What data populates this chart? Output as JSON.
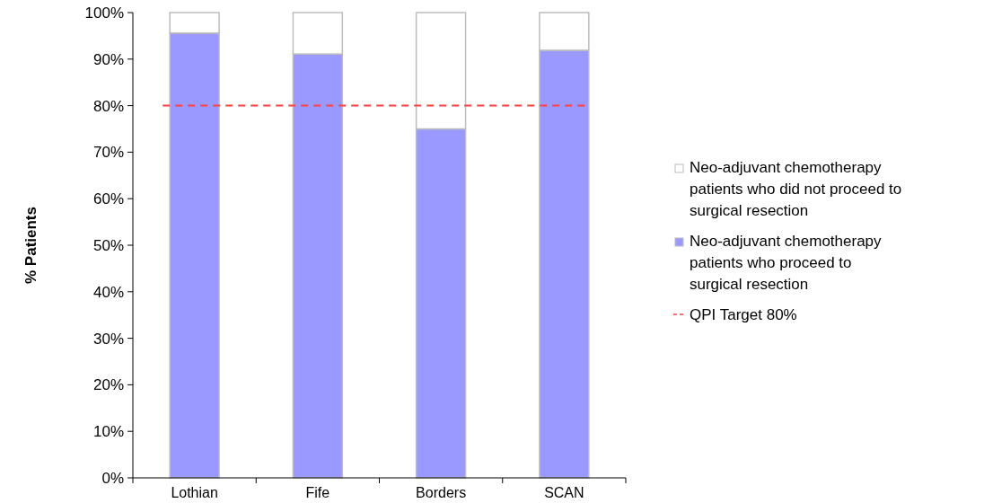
{
  "chart_data": {
    "type": "bar",
    "ylabel": "% Patients",
    "categories": [
      "Lothian",
      "Fife",
      "Borders",
      "SCAN"
    ],
    "stacked": true,
    "series": [
      {
        "name": "Neo-adjuvant chemotherapy patients who proceed to surgical resection",
        "color": "#9999ff",
        "values": [
          95.6,
          91.1,
          75,
          91.9
        ]
      },
      {
        "name": "Neo-adjuvant chemotherapy patients who did not proceed to surgical resection",
        "color": "#ffffff",
        "values": [
          4.4,
          8.9,
          25,
          8.1
        ]
      }
    ],
    "ylim": [
      0,
      100
    ],
    "yticks": [
      {
        "value": 0,
        "label": "0%"
      },
      {
        "value": 10,
        "label": "10%"
      },
      {
        "value": 20,
        "label": "20%"
      },
      {
        "value": 30,
        "label": "30%"
      },
      {
        "value": 40,
        "label": "40%"
      },
      {
        "value": 50,
        "label": "50%"
      },
      {
        "value": 60,
        "label": "60%"
      },
      {
        "value": 70,
        "label": "70%"
      },
      {
        "value": 80,
        "label": "80%"
      },
      {
        "value": 90,
        "label": "90%"
      },
      {
        "value": 100,
        "label": "100%"
      }
    ],
    "ref_lines": [
      {
        "axis": "y",
        "value": 80,
        "label": "QPI Target 80%",
        "color": "#ff4040",
        "line_style": "dashed"
      }
    ],
    "legend": "right",
    "grid": false
  }
}
